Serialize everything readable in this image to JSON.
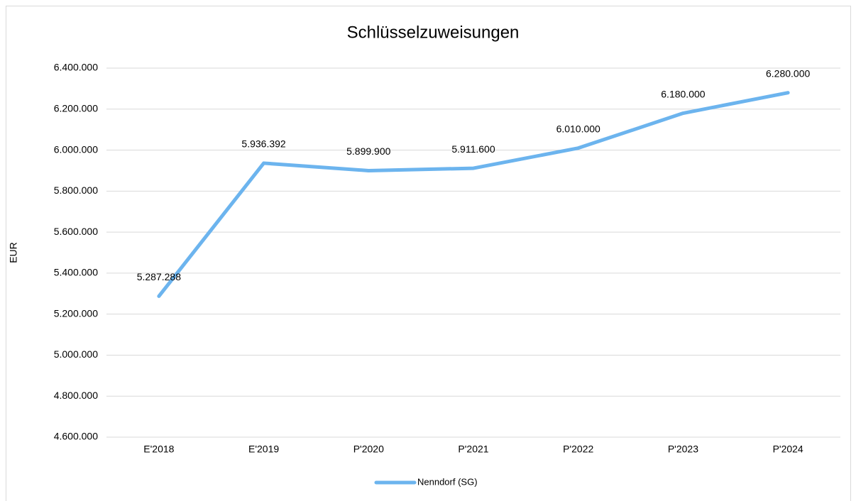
{
  "chart_data": {
    "type": "line",
    "title": "Schlüsselzuweisungen",
    "y_label": "EUR",
    "categories": [
      "E'2018",
      "E'2019",
      "P'2020",
      "P'2021",
      "P'2022",
      "P'2023",
      "P'2024"
    ],
    "series": [
      {
        "name": "Nenndorf (SG)",
        "color": "#6cb4ee",
        "values": [
          5287288,
          5936392,
          5899900,
          5911600,
          6010000,
          6180000,
          6280000
        ],
        "value_labels": [
          "5.287.288",
          "5.936.392",
          "5.899.900",
          "5.911.600",
          "6.010.000",
          "6.180.000",
          "6.280.000"
        ]
      }
    ],
    "ylim": [
      4600000,
      6400000
    ],
    "yticks": [
      {
        "value": 4600000,
        "label": "4.600.000"
      },
      {
        "value": 4800000,
        "label": "4.800.000"
      },
      {
        "value": 5000000,
        "label": "5.000.000"
      },
      {
        "value": 5200000,
        "label": "5.200.000"
      },
      {
        "value": 5400000,
        "label": "5.400.000"
      },
      {
        "value": 5600000,
        "label": "5.600.000"
      },
      {
        "value": 5800000,
        "label": "5.800.000"
      },
      {
        "value": 6000000,
        "label": "6.000.000"
      },
      {
        "value": 6200000,
        "label": "6.200.000"
      },
      {
        "value": 6400000,
        "label": "6.400.000"
      }
    ],
    "grid": true,
    "legend": "bottom"
  }
}
